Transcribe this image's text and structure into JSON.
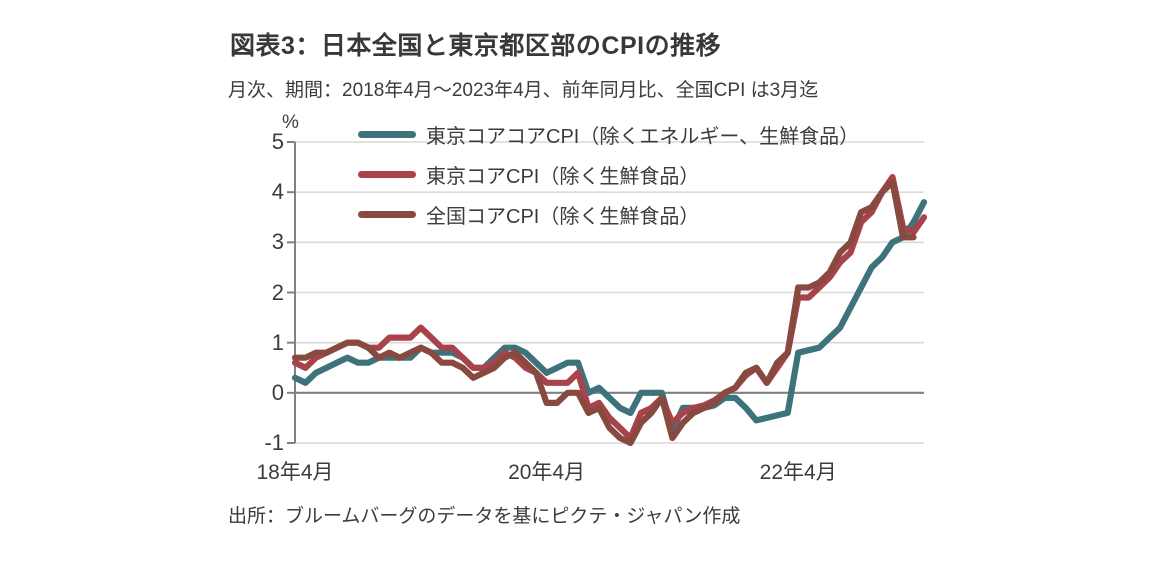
{
  "header": {
    "title": "図表3：日本全国と東京都区部のCPIの推移",
    "subtitle": "月次、期間：2018年4月～2023年4月、前年同月比、全国CPI は3月迄"
  },
  "footer": {
    "source": "出所：ブルームバーグのデータを基にピクテ・ジャパン作成"
  },
  "colors": {
    "grid": "#D9D9D9",
    "zero_line": "#808080",
    "axis": "#808080",
    "text": "#3C3C3C"
  },
  "chart_data": {
    "type": "line",
    "unit_label": "%",
    "ylim": [
      -1,
      5
    ],
    "yticks": [
      5,
      4,
      3,
      2,
      1,
      0,
      -1
    ],
    "grid": "horizontal",
    "legend_position": "top-left-inside",
    "x_start": "2018-04",
    "x_end": "2023-04",
    "x_months_total": 61,
    "xticks": [
      {
        "label": "18年4月",
        "month_index": 0
      },
      {
        "label": "20年4月",
        "month_index": 24
      },
      {
        "label": "22年4月",
        "month_index": 48
      }
    ],
    "series": [
      {
        "name": "東京コアコアCPI（除くエネルギー、生鮮食品）",
        "color": "#3E737C",
        "start": "2018-04",
        "values": [
          0.3,
          0.2,
          0.4,
          0.5,
          0.6,
          0.7,
          0.6,
          0.6,
          0.7,
          0.7,
          0.7,
          0.7,
          0.9,
          0.8,
          0.8,
          0.8,
          0.7,
          0.5,
          0.5,
          0.7,
          0.9,
          0.9,
          0.8,
          0.6,
          0.4,
          0.5,
          0.6,
          0.6,
          0.0,
          0.1,
          -0.1,
          -0.3,
          -0.4,
          0.0,
          0.0,
          0.0,
          -0.75,
          -0.3,
          -0.3,
          -0.3,
          -0.25,
          -0.1,
          -0.1,
          -0.3,
          -0.55,
          -0.5,
          -0.45,
          -0.4,
          0.8,
          0.85,
          0.9,
          1.1,
          1.3,
          1.7,
          2.1,
          2.5,
          2.7,
          3.0,
          3.1,
          3.4,
          3.8
        ]
      },
      {
        "name": "東京コアCPI（除く生鮮食品）",
        "color": "#A8434C",
        "start": "2018-04",
        "values": [
          0.6,
          0.5,
          0.7,
          0.8,
          0.9,
          1.0,
          1.0,
          0.9,
          0.9,
          1.1,
          1.1,
          1.1,
          1.3,
          1.1,
          0.9,
          0.9,
          0.7,
          0.5,
          0.5,
          0.6,
          0.8,
          0.7,
          0.5,
          0.4,
          0.2,
          0.2,
          0.2,
          0.4,
          -0.3,
          -0.2,
          -0.5,
          -0.7,
          -0.9,
          -0.4,
          -0.3,
          -0.1,
          -0.6,
          -0.4,
          -0.3,
          -0.25,
          -0.15,
          0.0,
          0.1,
          0.35,
          0.5,
          0.2,
          0.5,
          0.8,
          1.9,
          1.9,
          2.1,
          2.3,
          2.6,
          2.8,
          3.4,
          3.6,
          4.0,
          4.3,
          3.3,
          3.2,
          3.5
        ]
      },
      {
        "name": "全国コアCPI（除く生鮮食品）",
        "color": "#884A40",
        "start": "2018-04",
        "values": [
          0.7,
          0.7,
          0.8,
          0.8,
          0.9,
          1.0,
          1.0,
          0.9,
          0.7,
          0.8,
          0.7,
          0.8,
          0.9,
          0.8,
          0.6,
          0.6,
          0.5,
          0.3,
          0.4,
          0.5,
          0.7,
          0.8,
          0.6,
          0.4,
          -0.2,
          -0.2,
          0.0,
          0.0,
          -0.4,
          -0.3,
          -0.7,
          -0.9,
          -1.0,
          -0.6,
          -0.4,
          -0.1,
          -0.9,
          -0.6,
          -0.4,
          -0.3,
          -0.2,
          0.0,
          0.1,
          0.4,
          0.5,
          0.2,
          0.6,
          0.8,
          2.1,
          2.1,
          2.2,
          2.4,
          2.8,
          3.0,
          3.6,
          3.7,
          4.0,
          4.2,
          3.1,
          3.1
        ]
      }
    ]
  }
}
